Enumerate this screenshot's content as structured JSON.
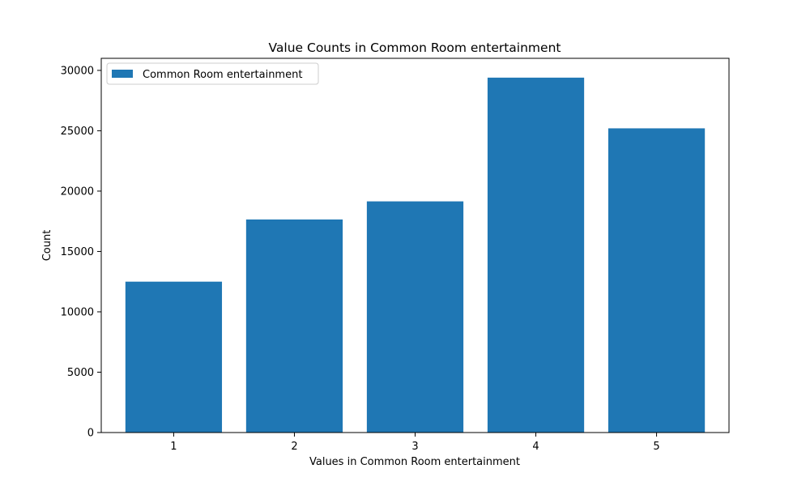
{
  "chart_data": {
    "type": "bar",
    "title": "Value Counts in Common Room entertainment",
    "xlabel": "Values in Common Room entertainment",
    "ylabel": "Count",
    "categories": [
      "1",
      "2",
      "3",
      "4",
      "5"
    ],
    "series": [
      {
        "name": "Common Room entertainment",
        "values": [
          12500,
          17650,
          19150,
          29400,
          25200
        ],
        "color": "#1f77b4"
      }
    ],
    "yticks": [
      "0",
      "5000",
      "10000",
      "15000",
      "20000",
      "25000",
      "30000"
    ],
    "ylim": [
      0,
      31000
    ],
    "grid": false,
    "legend_position": "top-left"
  }
}
